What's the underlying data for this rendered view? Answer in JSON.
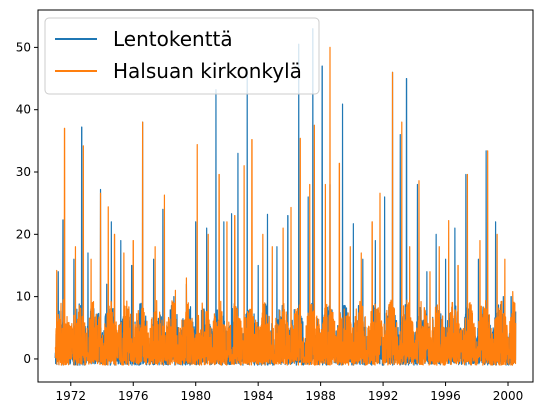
{
  "chart_data": {
    "type": "line",
    "title": "",
    "xlabel": "",
    "ylabel": "",
    "xlim": [
      1969.9,
      2001.6
    ],
    "ylim": [
      -3.7,
      56.0
    ],
    "x_ticks": [
      1972,
      1976,
      1980,
      1984,
      1988,
      1992,
      1996,
      2000
    ],
    "x_tick_labels": [
      "1972",
      "1976",
      "1980",
      "1984",
      "1988",
      "1992",
      "1996",
      "2000"
    ],
    "y_ticks": [
      0,
      10,
      20,
      30,
      40,
      50
    ],
    "y_tick_labels": [
      "0",
      "10",
      "20",
      "30",
      "40",
      "50"
    ],
    "grid": false,
    "legend_position": "upper-left",
    "series": [
      {
        "name": "Lentokenttä",
        "color": "#1f77b4",
        "x_range": [
          1971.0,
          2000.5
        ],
        "baseline": -1,
        "noise_max": 10,
        "peaks": [
          [
            1971.2,
            14
          ],
          [
            1971.5,
            22.3
          ],
          [
            1972.2,
            16
          ],
          [
            1972.7,
            37.2
          ],
          [
            1973.1,
            17
          ],
          [
            1973.9,
            27.2
          ],
          [
            1974.3,
            12
          ],
          [
            1974.6,
            22
          ],
          [
            1975.2,
            19
          ],
          [
            1975.9,
            15
          ],
          [
            1976.6,
            38
          ],
          [
            1977.3,
            16
          ],
          [
            1977.9,
            24
          ],
          [
            1978.6,
            10
          ],
          [
            1979.4,
            12
          ],
          [
            1980.0,
            22
          ],
          [
            1980.7,
            21
          ],
          [
            1981.3,
            43.2
          ],
          [
            1981.8,
            22
          ],
          [
            1982.3,
            23.3
          ],
          [
            1982.7,
            33
          ],
          [
            1983.3,
            46.5
          ],
          [
            1984.0,
            15
          ],
          [
            1984.6,
            23.2
          ],
          [
            1985.2,
            18
          ],
          [
            1985.9,
            23
          ],
          [
            1986.6,
            50.5
          ],
          [
            1987.2,
            26
          ],
          [
            1987.5,
            53
          ],
          [
            1988.1,
            47
          ],
          [
            1988.6,
            28
          ],
          [
            1989.4,
            40.9
          ],
          [
            1990.1,
            21.7
          ],
          [
            1990.7,
            16
          ],
          [
            1991.5,
            19
          ],
          [
            1992.1,
            26
          ],
          [
            1992.6,
            46
          ],
          [
            1993.1,
            36
          ],
          [
            1993.5,
            45
          ],
          [
            1994.2,
            28
          ],
          [
            1994.8,
            14
          ],
          [
            1995.4,
            20
          ],
          [
            1996.0,
            16
          ],
          [
            1996.6,
            21
          ],
          [
            1997.3,
            29.6
          ],
          [
            1998.1,
            16
          ],
          [
            1998.6,
            33.4
          ],
          [
            1999.2,
            22
          ],
          [
            1999.7,
            10
          ],
          [
            2000.2,
            10
          ]
        ]
      },
      {
        "name": "Halsuan kirkonkylä",
        "color": "#ff7f0e",
        "x_range": [
          1971.0,
          2000.5
        ],
        "baseline": -1,
        "noise_max": 10.5,
        "peaks": [
          [
            1971.1,
            14.2
          ],
          [
            1971.6,
            37
          ],
          [
            1972.3,
            18
          ],
          [
            1972.8,
            34.2
          ],
          [
            1973.3,
            16
          ],
          [
            1973.9,
            26.6
          ],
          [
            1974.4,
            24.4
          ],
          [
            1974.8,
            20
          ],
          [
            1975.4,
            17
          ],
          [
            1976.0,
            19
          ],
          [
            1976.6,
            38
          ],
          [
            1977.4,
            18
          ],
          [
            1978.0,
            26.3
          ],
          [
            1978.7,
            11
          ],
          [
            1979.4,
            13
          ],
          [
            1980.1,
            34.4
          ],
          [
            1980.8,
            20
          ],
          [
            1981.5,
            29.6
          ],
          [
            1982.0,
            22
          ],
          [
            1982.5,
            23
          ],
          [
            1983.1,
            31
          ],
          [
            1983.6,
            35.2
          ],
          [
            1984.3,
            20
          ],
          [
            1984.9,
            18
          ],
          [
            1985.6,
            21
          ],
          [
            1986.1,
            24.3
          ],
          [
            1986.7,
            35.4
          ],
          [
            1987.3,
            28
          ],
          [
            1987.6,
            37.5
          ],
          [
            1988.3,
            28
          ],
          [
            1988.6,
            50
          ],
          [
            1989.2,
            31.4
          ],
          [
            1989.9,
            18
          ],
          [
            1990.6,
            17
          ],
          [
            1991.3,
            22
          ],
          [
            1991.8,
            26.6
          ],
          [
            1992.6,
            46
          ],
          [
            1993.2,
            38
          ],
          [
            1993.7,
            18
          ],
          [
            1994.3,
            28.6
          ],
          [
            1995.0,
            14
          ],
          [
            1995.6,
            18
          ],
          [
            1996.2,
            22.2
          ],
          [
            1996.8,
            15
          ],
          [
            1997.4,
            29.6
          ],
          [
            1998.2,
            19
          ],
          [
            1998.7,
            33.4
          ],
          [
            1999.3,
            20
          ],
          [
            1999.8,
            16
          ],
          [
            2000.3,
            10.8
          ]
        ]
      }
    ]
  }
}
